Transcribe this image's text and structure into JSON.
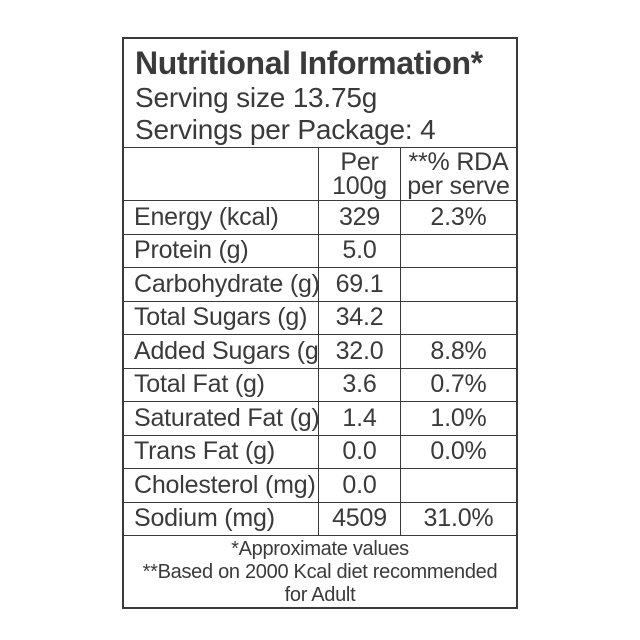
{
  "header": {
    "title": "Nutritional Information*",
    "serving_size": "Serving size 13.75g",
    "servings_per_package": "Servings per Package: 4"
  },
  "columns": {
    "per_100g_line1": "Per",
    "per_100g_line2": "100g",
    "rda_line1": "**% RDA",
    "rda_line2": "per serve"
  },
  "rows": [
    {
      "label": "Energy (kcal)",
      "per100g": "329",
      "rda": "2.3%"
    },
    {
      "label": "Protein (g)",
      "per100g": "5.0",
      "rda": ""
    },
    {
      "label": "Carbohydrate (g)",
      "per100g": "69.1",
      "rda": ""
    },
    {
      "label": "Total Sugars (g)",
      "per100g": "34.2",
      "rda": ""
    },
    {
      "label": "Added Sugars (g)",
      "per100g": "32.0",
      "rda": "8.8%"
    },
    {
      "label": "Total Fat (g)",
      "per100g": "3.6",
      "rda": "0.7%"
    },
    {
      "label": "Saturated Fat (g)",
      "per100g": "1.4",
      "rda": "1.0%"
    },
    {
      "label": "Trans Fat (g)",
      "per100g": "0.0",
      "rda": "0.0%"
    },
    {
      "label": "Cholesterol (mg)",
      "per100g": "0.0",
      "rda": ""
    },
    {
      "label": "Sodium (mg)",
      "per100g": "4509",
      "rda": "31.0%"
    }
  ],
  "footnotes": {
    "line1": "*Approximate values",
    "line2": "**Based on 2000 Kcal diet recommended",
    "line3": "for Adult"
  },
  "colors": {
    "text": "#3a3a3a",
    "line": "#3a3a3a",
    "background": "#ffffff"
  }
}
